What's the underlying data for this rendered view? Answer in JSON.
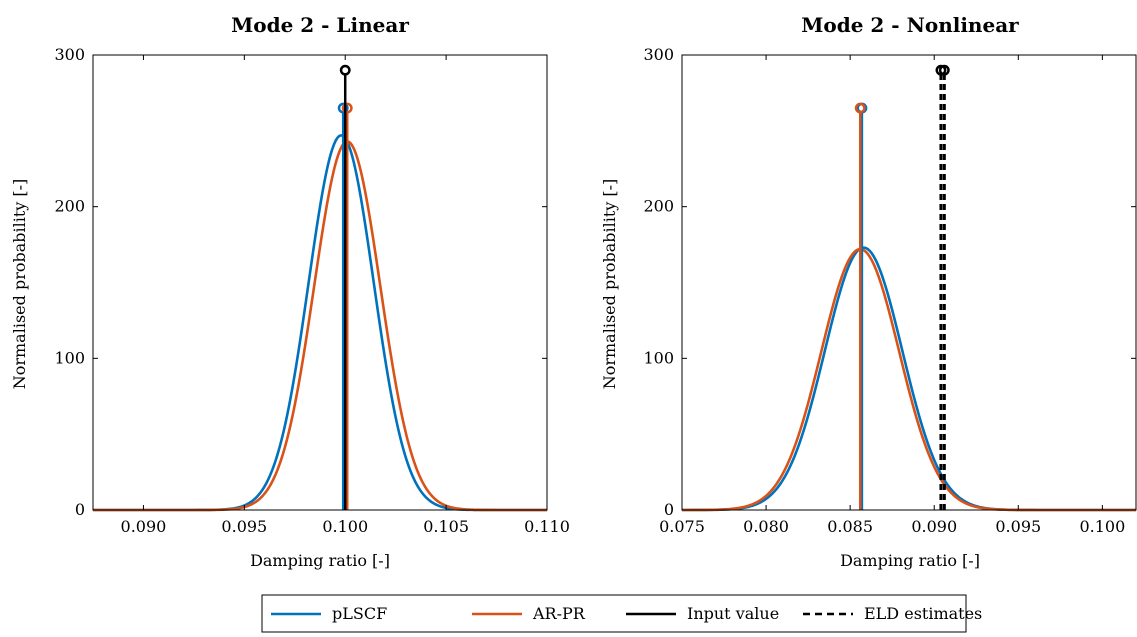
{
  "chart_data": [
    {
      "type": "line",
      "title": "Mode 2 - Linear",
      "xlabel": "Damping ratio [-]",
      "ylabel": "Normalised probability [-]",
      "xlim": [
        0.0875,
        0.11
      ],
      "ylim": [
        0,
        300
      ],
      "xticks": [
        0.09,
        0.095,
        0.1,
        0.105,
        0.11
      ],
      "xtick_labels": [
        "0.090",
        "0.095",
        "0.100",
        "0.105",
        "0.110"
      ],
      "yticks": [
        0,
        100,
        200,
        300
      ],
      "ytick_labels": [
        "0",
        "100",
        "200",
        "300"
      ],
      "grid": false,
      "distributions": [
        {
          "series": "pLSCF",
          "mean": 0.0998,
          "peak": 247
        },
        {
          "series": "AR-PR",
          "mean": 0.1001,
          "peak": 243
        }
      ],
      "stems": [
        {
          "series": "pLSCF",
          "x": 0.0999,
          "height": 265
        },
        {
          "series": "AR-PR",
          "x": 0.1001,
          "height": 265
        },
        {
          "series": "Input value",
          "x": 0.1,
          "height": 290
        }
      ]
    },
    {
      "type": "line",
      "title": "Mode 2 - Nonlinear",
      "xlabel": "Damping ratio [-]",
      "ylabel": "Normalised probability [-]",
      "xlim": [
        0.075,
        0.102
      ],
      "ylim": [
        0,
        300
      ],
      "xticks": [
        0.075,
        0.08,
        0.085,
        0.09,
        0.095,
        0.1
      ],
      "xtick_labels": [
        "0.075",
        "0.080",
        "0.085",
        "0.090",
        "0.095",
        "0.100"
      ],
      "yticks": [
        0,
        100,
        200,
        300
      ],
      "ytick_labels": [
        "0",
        "100",
        "200",
        "300"
      ],
      "grid": false,
      "distributions": [
        {
          "series": "pLSCF",
          "mean": 0.0858,
          "peak": 173
        },
        {
          "series": "AR-PR",
          "mean": 0.0856,
          "peak": 172
        }
      ],
      "stems": [
        {
          "series": "pLSCF",
          "x": 0.0857,
          "height": 265
        },
        {
          "series": "AR-PR",
          "x": 0.0856,
          "height": 265
        },
        {
          "series": "ELD estimates",
          "x": 0.0904,
          "height": 290
        },
        {
          "series": "ELD estimates",
          "x": 0.0906,
          "height": 290
        }
      ]
    }
  ],
  "legend": {
    "position": "bottom",
    "entries": [
      {
        "label": "pLSCF",
        "color": "#0072BD",
        "style": "solid"
      },
      {
        "label": "AR-PR",
        "color": "#D95319",
        "style": "solid"
      },
      {
        "label": "Input value",
        "color": "#000000",
        "style": "solid"
      },
      {
        "label": "ELD estimates",
        "color": "#000000",
        "style": "dashed"
      }
    ]
  },
  "colors": {
    "pLSCF": "#0072BD",
    "AR-PR": "#D95319",
    "Input value": "#000000",
    "ELD estimates": "#000000"
  }
}
